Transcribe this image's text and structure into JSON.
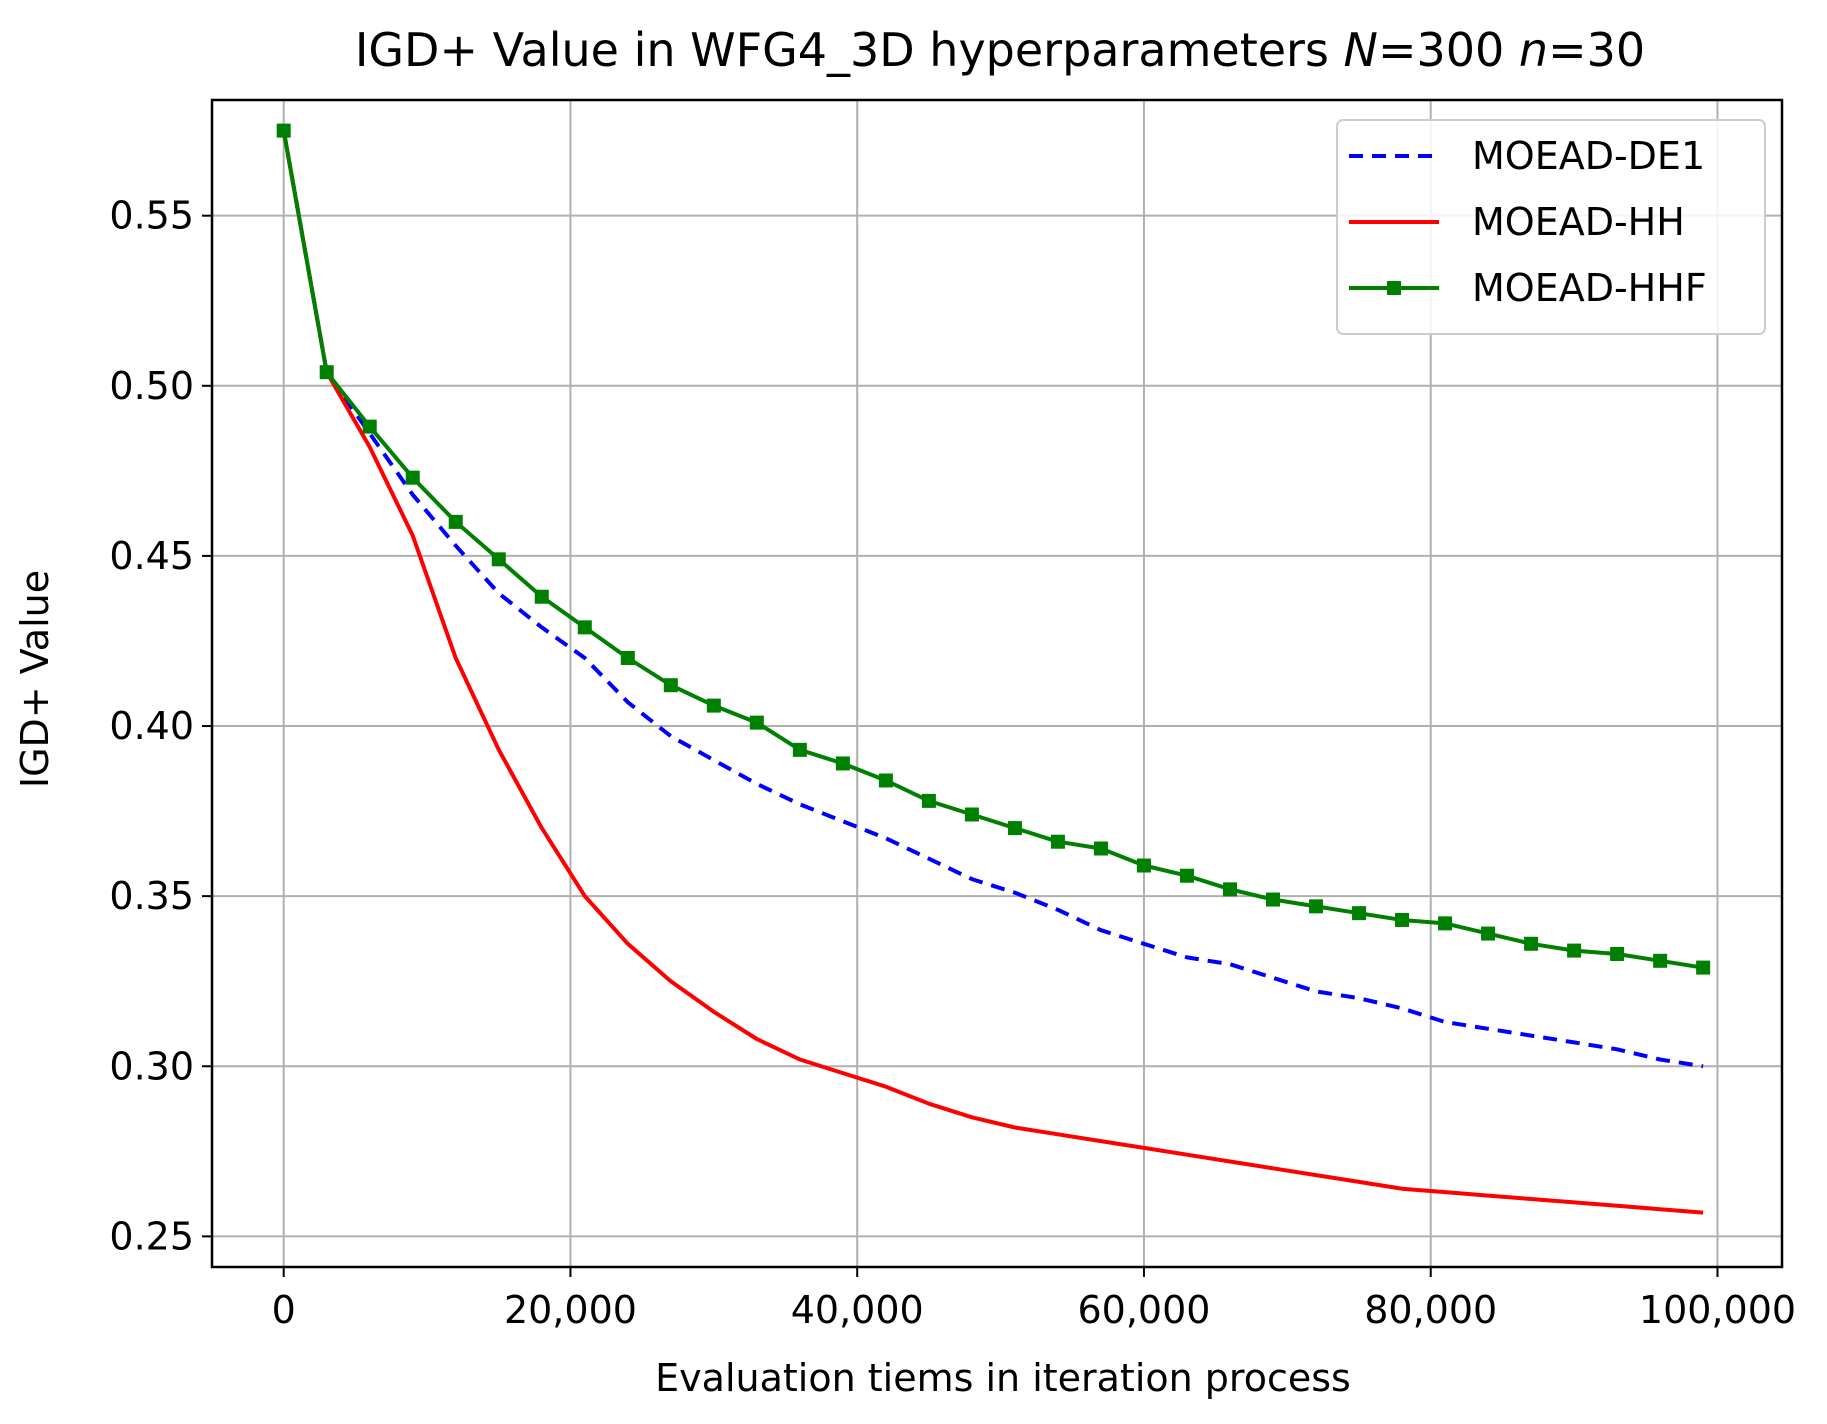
{
  "chart_data": {
    "type": "line",
    "title_parts": [
      {
        "text": "IGD+ Value in WFG4_3D hyperparameters ",
        "italic": false
      },
      {
        "text": "N",
        "italic": true
      },
      {
        "text": "=300 ",
        "italic": false
      },
      {
        "text": "n",
        "italic": true
      },
      {
        "text": "=30",
        "italic": false
      }
    ],
    "xlabel": "Evaluation tiems in iteration process",
    "ylabel": "IGD+ Value",
    "xlim": [
      -5000,
      104500
    ],
    "ylim": [
      0.241,
      0.584
    ],
    "xticks": [
      0,
      20000,
      40000,
      60000,
      80000,
      100000
    ],
    "xtick_labels": [
      "0",
      "20,000",
      "40,000",
      "60,000",
      "80,000",
      "100,000"
    ],
    "yticks": [
      0.25,
      0.3,
      0.35,
      0.4,
      0.45,
      0.5,
      0.55
    ],
    "ytick_labels": [
      "0.25",
      "0.30",
      "0.35",
      "0.40",
      "0.45",
      "0.50",
      "0.55"
    ],
    "grid": true,
    "legend_position": "top-right",
    "x": [
      0,
      3000,
      6000,
      9000,
      12000,
      15000,
      18000,
      21000,
      24000,
      27000,
      30000,
      33000,
      36000,
      39000,
      42000,
      45000,
      48000,
      51000,
      54000,
      57000,
      60000,
      63000,
      66000,
      69000,
      72000,
      75000,
      78000,
      81000,
      84000,
      87000,
      90000,
      93000,
      96000,
      99000
    ],
    "series": [
      {
        "name": "MOEAD-DE1",
        "color": "#0000ff",
        "style": "dashed",
        "marker": "none",
        "values": [
          0.575,
          0.504,
          0.486,
          0.468,
          0.453,
          0.439,
          0.429,
          0.42,
          0.407,
          0.397,
          0.39,
          0.383,
          0.377,
          0.372,
          0.367,
          0.361,
          0.355,
          0.351,
          0.346,
          0.34,
          0.336,
          0.332,
          0.33,
          0.326,
          0.322,
          0.32,
          0.317,
          0.313,
          0.311,
          0.309,
          0.307,
          0.305,
          0.302,
          0.3
        ]
      },
      {
        "name": "MOEAD-HH",
        "color": "#ff0000",
        "style": "solid",
        "marker": "none",
        "values": [
          0.575,
          0.504,
          0.482,
          0.456,
          0.42,
          0.393,
          0.37,
          0.35,
          0.336,
          0.325,
          0.316,
          0.308,
          0.302,
          0.298,
          0.294,
          0.289,
          0.285,
          0.282,
          0.28,
          0.278,
          0.276,
          0.274,
          0.272,
          0.27,
          0.268,
          0.266,
          0.264,
          0.263,
          0.262,
          0.261,
          0.26,
          0.259,
          0.258,
          0.257
        ]
      },
      {
        "name": "MOEAD-HHF",
        "color": "#008000",
        "style": "solid",
        "marker": "square",
        "values": [
          0.575,
          0.504,
          0.488,
          0.473,
          0.46,
          0.449,
          0.438,
          0.429,
          0.42,
          0.412,
          0.406,
          0.401,
          0.393,
          0.389,
          0.384,
          0.378,
          0.374,
          0.37,
          0.366,
          0.364,
          0.359,
          0.356,
          0.352,
          0.349,
          0.347,
          0.345,
          0.343,
          0.342,
          0.339,
          0.336,
          0.334,
          0.333,
          0.331,
          0.329
        ]
      }
    ]
  }
}
